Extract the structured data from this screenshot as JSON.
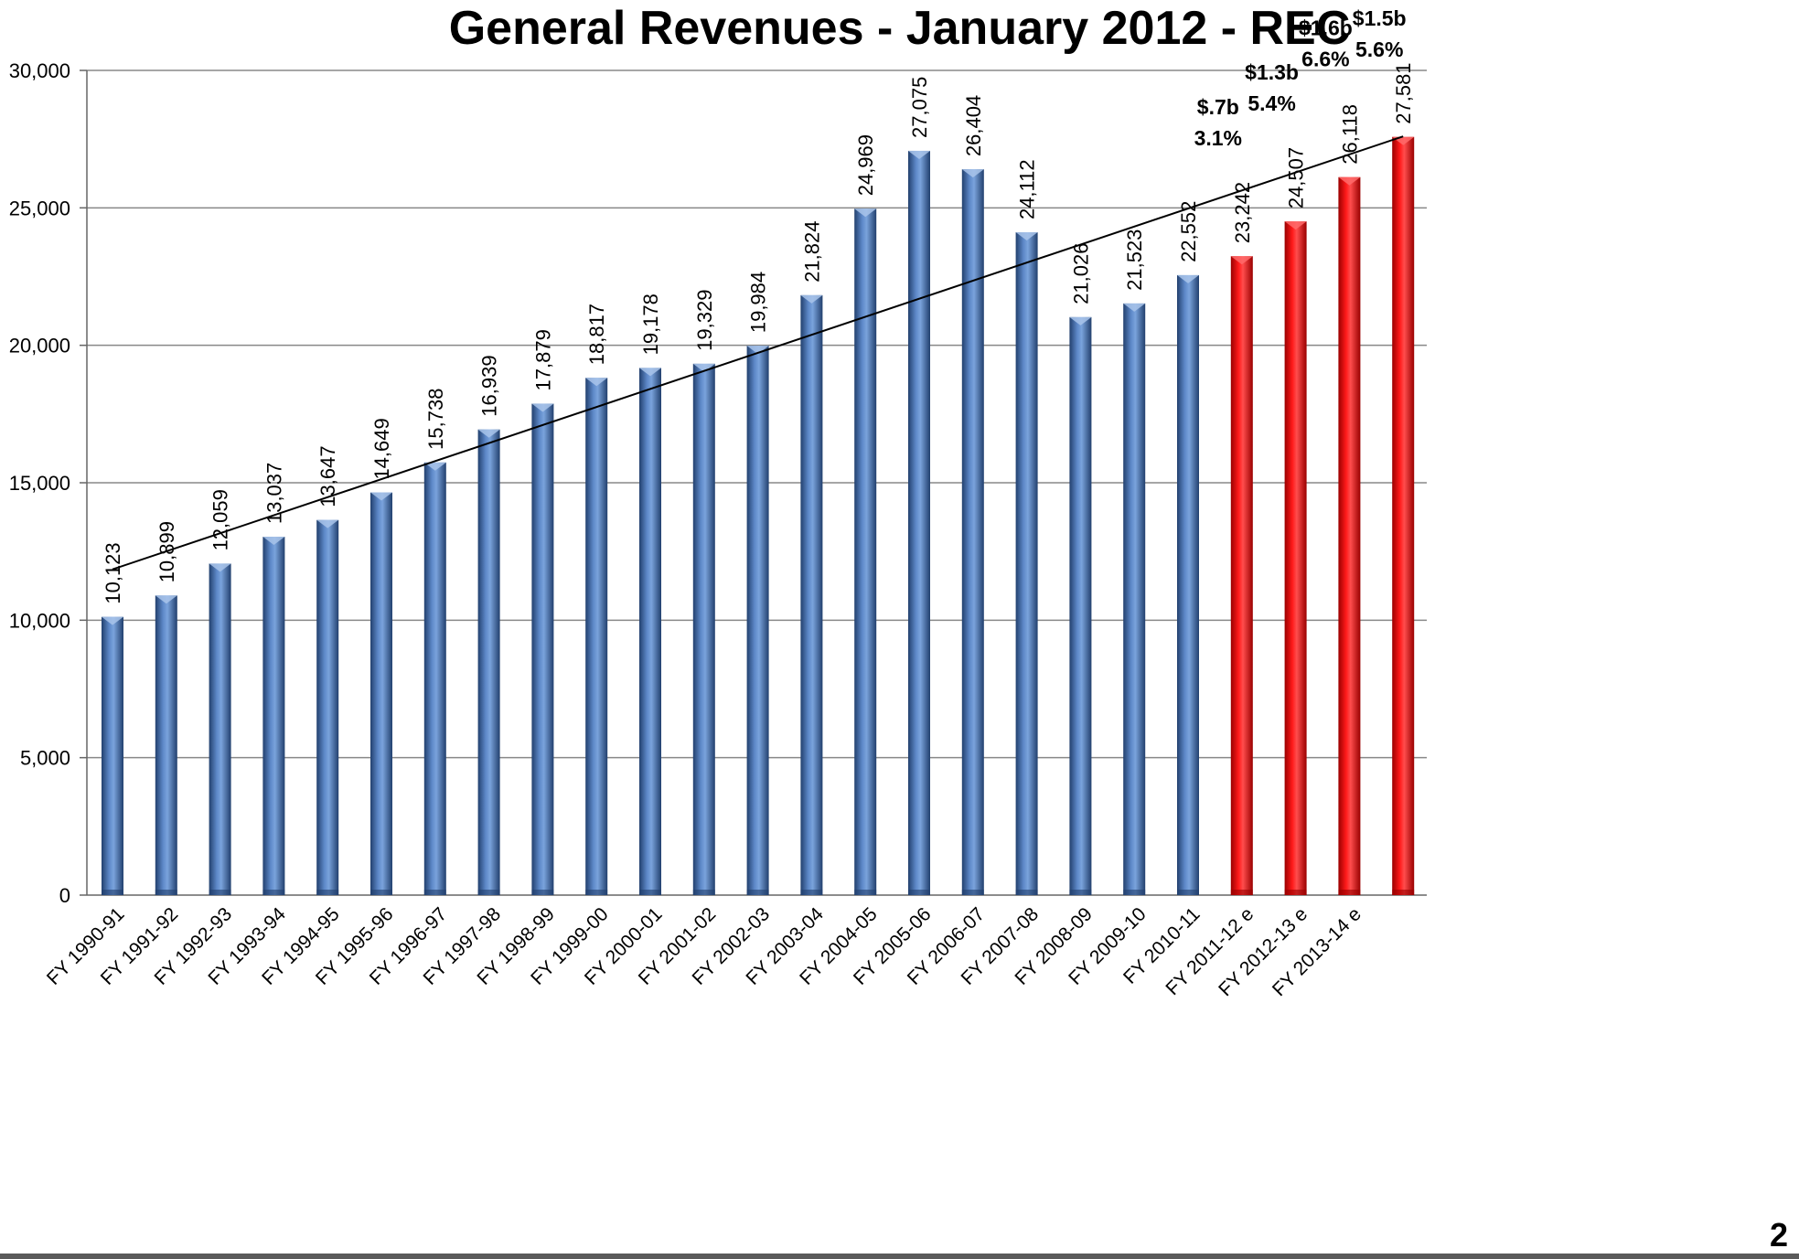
{
  "chart_data": {
    "type": "bar",
    "title": "General Revenues - January 2012 - REC",
    "categories": [
      "FY 1990-91",
      "FY 1991-92",
      "FY 1992-93",
      "FY 1993-94",
      "FY 1994-95",
      "FY 1995-96",
      "FY 1996-97",
      "FY 1997-98",
      "FY 1998-99",
      "FY 1999-00",
      "FY 2000-01",
      "FY 2001-02",
      "FY 2002-03",
      "FY 2003-04",
      "FY 2004-05",
      "FY 2005-06",
      "FY 2006-07",
      "FY 2007-08",
      "FY 2008-09",
      "FY 2009-10",
      "FY 2010-11",
      "FY 2011-12 e",
      "FY 2012-13 e",
      "FY 2013-14 e",
      ""
    ],
    "values": [
      10123,
      10899,
      12059,
      13037,
      13647,
      14649,
      15738,
      16939,
      17879,
      18817,
      19178,
      19329,
      19984,
      21824,
      24969,
      27075,
      26404,
      24112,
      21026,
      21523,
      22552,
      23242,
      24507,
      26118,
      27581
    ],
    "value_labels": [
      "10,123",
      "10,899",
      "12,059",
      "13,037",
      "13,647",
      "14,649",
      "15,738",
      "16,939",
      "17,879",
      "18,817",
      "19,178",
      "19,329",
      "19,984",
      "21,824",
      "24,969",
      "27,075",
      "26,404",
      "24,112",
      "21,026",
      "21,523",
      "22,552",
      "23,242",
      "24,507",
      "26,118",
      "27,581"
    ],
    "estimate": [
      false,
      false,
      false,
      false,
      false,
      false,
      false,
      false,
      false,
      false,
      false,
      false,
      false,
      false,
      false,
      false,
      false,
      false,
      false,
      false,
      false,
      true,
      true,
      true,
      true
    ],
    "yticks": [
      0,
      5000,
      10000,
      15000,
      20000,
      25000,
      30000
    ],
    "ytick_labels": [
      "0",
      "5,000",
      "10,000",
      "15,000",
      "20,000",
      "25,000",
      "30,000"
    ],
    "ylim": [
      0,
      30000
    ],
    "grid": true,
    "trendline": {
      "start_value": 11850,
      "end_value": 27600
    },
    "annotations": [
      {
        "line1": "$.7b",
        "line2": "3.1%",
        "category_index": 21
      },
      {
        "line1": "$1.3b",
        "line2": "5.4%",
        "category_index": 22
      },
      {
        "line1": "$1.6b",
        "line2": "6.6%",
        "category_index": 23
      },
      {
        "line1": "$1.5b",
        "line2": "5.6%",
        "category_index": 24
      }
    ],
    "colors": {
      "actual": "#4a72b0",
      "actual_dark": "#22406e",
      "estimate": "#ff0000",
      "estimate_dark": "#9a0000",
      "grid": "#888888"
    }
  },
  "page_number": "2"
}
